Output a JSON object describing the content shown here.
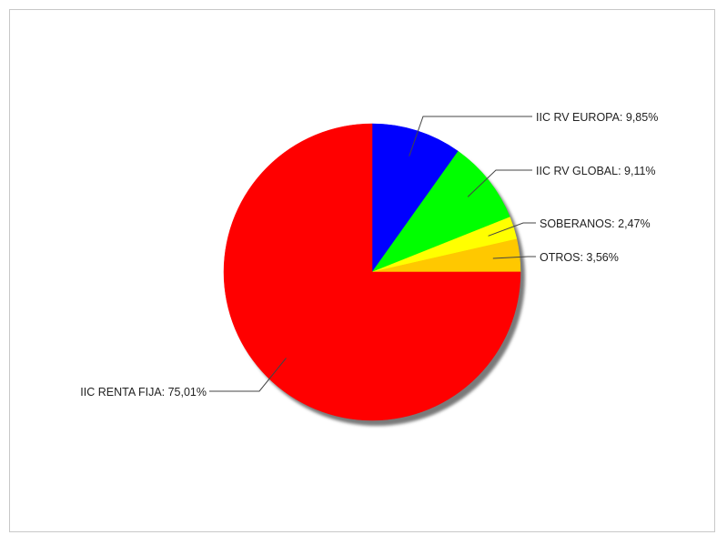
{
  "chart_data": {
    "type": "pie",
    "title": "",
    "start_angle_deg": 90,
    "direction": "clockwise",
    "legend": "none",
    "slices": [
      {
        "name": "IIC RV EUROPA",
        "value": 9.85,
        "label": "IIC RV EUROPA: 9,85%",
        "color": "#0000ff"
      },
      {
        "name": "IIC RV GLOBAL",
        "value": 9.11,
        "label": "IIC RV GLOBAL: 9,11%",
        "color": "#00ff00"
      },
      {
        "name": "SOBERANOS",
        "value": 2.47,
        "label": "SOBERANOS: 2,47%",
        "color": "#ffff00"
      },
      {
        "name": "OTROS",
        "value": 3.56,
        "label": "OTROS: 3,56%",
        "color": "#ffc800"
      },
      {
        "name": "IIC RENTA FIJA",
        "value": 75.01,
        "label": "IIC RENTA FIJA: 75,01%",
        "color": "#ff0000"
      }
    ]
  }
}
